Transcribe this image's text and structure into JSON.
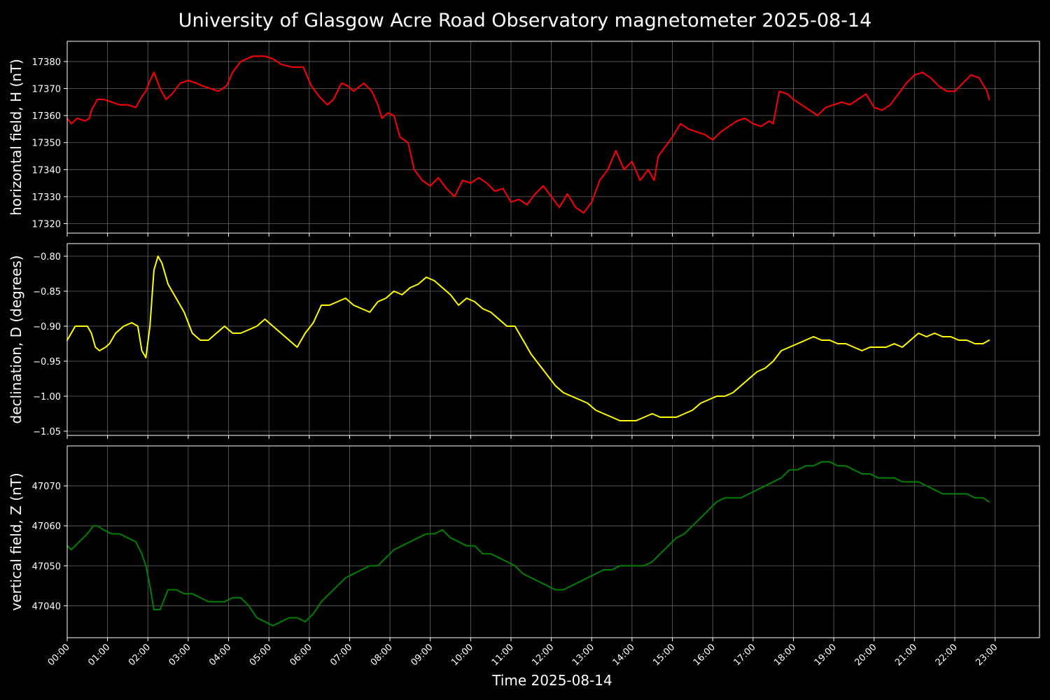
{
  "title": "University of Glasgow Acre Road Observatory magnetometer 2025-08-14",
  "xlabel": "Time 2025-08-14",
  "x_ticks": [
    "00:00",
    "01:00",
    "02:00",
    "03:00",
    "04:00",
    "05:00",
    "06:00",
    "07:00",
    "08:00",
    "09:00",
    "10:00",
    "11:00",
    "12:00",
    "13:00",
    "14:00",
    "15:00",
    "16:00",
    "17:00",
    "18:00",
    "19:00",
    "20:00",
    "21:00",
    "22:00",
    "23:00"
  ],
  "chart_data": [
    {
      "type": "line",
      "ylabel": "horizontal field, H (nT)",
      "color": "#ff0000",
      "ylim": [
        17316.5,
        17387.5
      ],
      "xlim_hours": [
        0,
        24.1
      ],
      "y_ticks": [
        17320,
        17330,
        17340,
        17350,
        17360,
        17370,
        17380
      ],
      "grid": true,
      "series": [
        {
          "x_hours": [
            0,
            0.1,
            0.25,
            0.45,
            0.55,
            0.6,
            0.75,
            0.9,
            1.1,
            1.3,
            1.5,
            1.7,
            1.85,
            1.95,
            2.05,
            2.15,
            2.3,
            2.45,
            2.6,
            2.8,
            3.0,
            3.2,
            3.35,
            3.55,
            3.75,
            3.95,
            4.1,
            4.3,
            4.6,
            4.9,
            5.1,
            5.3,
            5.55,
            5.85,
            6.05,
            6.25,
            6.45,
            6.6,
            6.8,
            6.95,
            7.1,
            7.35,
            7.55,
            7.7,
            7.8,
            7.95,
            8.1,
            8.25,
            8.45,
            8.6,
            8.8,
            9.0,
            9.2,
            9.4,
            9.6,
            9.8,
            10.0,
            10.2,
            10.4,
            10.6,
            10.8,
            11.0,
            11.2,
            11.4,
            11.6,
            11.8,
            12.0,
            12.2,
            12.4,
            12.6,
            12.8,
            13.0,
            13.2,
            13.4,
            13.6,
            13.8,
            14.0,
            14.2,
            14.4,
            14.55,
            14.65,
            14.8,
            15.0,
            15.2,
            15.4,
            15.6,
            15.8,
            16.0,
            16.2,
            16.4,
            16.6,
            16.8,
            17.0,
            17.2,
            17.4,
            17.5,
            17.65,
            17.85,
            18.0,
            18.2,
            18.4,
            18.6,
            18.8,
            19.0,
            19.2,
            19.4,
            19.6,
            19.8,
            20.0,
            20.2,
            20.4,
            20.6,
            20.8,
            21.0,
            21.2,
            21.4,
            21.6,
            21.8,
            22.0,
            22.2,
            22.4,
            22.6,
            22.8,
            22.85
          ],
          "values": [
            17359,
            17357,
            17359,
            17358,
            17359,
            17362,
            17366,
            17366,
            17365,
            17364,
            17364,
            17363,
            17367,
            17369,
            17373,
            17376,
            17370,
            17366,
            17368,
            17372,
            17373,
            17372,
            17371,
            17370,
            17369,
            17371,
            17376,
            17380,
            17382,
            17382,
            17381,
            17379,
            17378,
            17378,
            17371,
            17367,
            17364,
            17366,
            17372,
            17371,
            17369,
            17372,
            17369,
            17364,
            17359,
            17361,
            17360,
            17352,
            17350,
            17340,
            17336,
            17334,
            17337,
            17333,
            17330,
            17336,
            17335,
            17337,
            17335,
            17332,
            17333,
            17328,
            17329,
            17327,
            17331,
            17334,
            17330,
            17326,
            17331,
            17326,
            17324,
            17328,
            17336,
            17340,
            17347,
            17340,
            17343,
            17336,
            17340,
            17336,
            17345,
            17348,
            17352,
            17357,
            17355,
            17354,
            17353,
            17351,
            17354,
            17356,
            17358,
            17359,
            17357,
            17356,
            17358,
            17357,
            17369,
            17368,
            17366,
            17364,
            17362,
            17360,
            17363,
            17364,
            17365,
            17364,
            17366,
            17368,
            17363,
            17362,
            17364,
            17368,
            17372,
            17375,
            17376,
            17374,
            17371,
            17369,
            17369,
            17372,
            17375,
            17374,
            17369,
            17366
          ]
        }
      ]
    },
    {
      "type": "line",
      "ylabel": "declination, D (degrees)",
      "color": "#ffff00",
      "ylim": [
        -1.056,
        -0.782
      ],
      "xlim_hours": [
        0,
        24.1
      ],
      "y_ticks": [
        -0.8,
        -0.85,
        -0.9,
        -0.95,
        -1.0,
        -1.05
      ],
      "y_tick_labels": [
        "−0.80",
        "−0.85",
        "−0.90",
        "−0.95",
        "−1.00",
        "−1.05"
      ],
      "grid": true,
      "series": [
        {
          "x_hours": [
            0,
            0.1,
            0.2,
            0.35,
            0.5,
            0.6,
            0.7,
            0.8,
            0.95,
            1.05,
            1.2,
            1.4,
            1.6,
            1.75,
            1.85,
            1.95,
            2.05,
            2.15,
            2.25,
            2.35,
            2.5,
            2.7,
            2.9,
            3.1,
            3.3,
            3.5,
            3.7,
            3.9,
            4.1,
            4.3,
            4.5,
            4.7,
            4.9,
            5.1,
            5.3,
            5.5,
            5.7,
            5.9,
            6.1,
            6.3,
            6.5,
            6.7,
            6.9,
            7.1,
            7.3,
            7.5,
            7.7,
            7.9,
            8.1,
            8.3,
            8.5,
            8.7,
            8.9,
            9.1,
            9.3,
            9.5,
            9.7,
            9.9,
            10.1,
            10.3,
            10.5,
            10.7,
            10.9,
            11.1,
            11.3,
            11.5,
            11.7,
            11.9,
            12.1,
            12.3,
            12.5,
            12.7,
            12.9,
            13.1,
            13.3,
            13.5,
            13.7,
            13.9,
            14.1,
            14.3,
            14.5,
            14.7,
            14.9,
            15.1,
            15.3,
            15.5,
            15.7,
            15.9,
            16.1,
            16.3,
            16.5,
            16.7,
            16.9,
            17.1,
            17.3,
            17.5,
            17.7,
            17.9,
            18.1,
            18.3,
            18.5,
            18.7,
            18.9,
            19.1,
            19.3,
            19.5,
            19.7,
            19.9,
            20.1,
            20.3,
            20.5,
            20.7,
            20.9,
            21.1,
            21.3,
            21.5,
            21.7,
            21.9,
            22.1,
            22.3,
            22.5,
            22.7,
            22.85
          ],
          "values": [
            -0.92,
            -0.91,
            -0.9,
            -0.9,
            -0.9,
            -0.91,
            -0.93,
            -0.935,
            -0.93,
            -0.925,
            -0.91,
            -0.9,
            -0.895,
            -0.9,
            -0.935,
            -0.945,
            -0.9,
            -0.82,
            -0.8,
            -0.81,
            -0.84,
            -0.86,
            -0.88,
            -0.91,
            -0.92,
            -0.92,
            -0.91,
            -0.9,
            -0.91,
            -0.91,
            -0.905,
            -0.9,
            -0.89,
            -0.9,
            -0.91,
            -0.92,
            -0.93,
            -0.91,
            -0.895,
            -0.87,
            -0.87,
            -0.865,
            -0.86,
            -0.87,
            -0.875,
            -0.88,
            -0.865,
            -0.86,
            -0.85,
            -0.855,
            -0.845,
            -0.84,
            -0.83,
            -0.835,
            -0.845,
            -0.855,
            -0.87,
            -0.86,
            -0.865,
            -0.875,
            -0.88,
            -0.89,
            -0.9,
            -0.9,
            -0.92,
            -0.94,
            -0.955,
            -0.97,
            -0.985,
            -0.995,
            -1.0,
            -1.005,
            -1.01,
            -1.02,
            -1.025,
            -1.03,
            -1.035,
            -1.035,
            -1.035,
            -1.03,
            -1.025,
            -1.03,
            -1.03,
            -1.03,
            -1.025,
            -1.02,
            -1.01,
            -1.005,
            -1.0,
            -1.0,
            -0.995,
            -0.985,
            -0.975,
            -0.965,
            -0.96,
            -0.95,
            -0.935,
            -0.93,
            -0.925,
            -0.92,
            -0.915,
            -0.92,
            -0.92,
            -0.925,
            -0.925,
            -0.93,
            -0.935,
            -0.93,
            -0.93,
            -0.93,
            -0.925,
            -0.93,
            -0.92,
            -0.91,
            -0.915,
            -0.91,
            -0.915,
            -0.915,
            -0.92,
            -0.92,
            -0.925,
            -0.925,
            -0.92
          ]
        }
      ]
    },
    {
      "type": "line",
      "ylabel": "vertical field, Z (nT)",
      "color": "#008000",
      "ylim": [
        47032,
        47080
      ],
      "xlim_hours": [
        0,
        24.1
      ],
      "y_ticks": [
        47040,
        47050,
        47060,
        47070
      ],
      "grid": true,
      "series": [
        {
          "x_hours": [
            0,
            0.1,
            0.3,
            0.5,
            0.65,
            0.75,
            0.9,
            1.1,
            1.3,
            1.5,
            1.7,
            1.85,
            1.95,
            2.05,
            2.15,
            2.3,
            2.5,
            2.7,
            2.9,
            3.1,
            3.3,
            3.5,
            3.7,
            3.9,
            4.1,
            4.3,
            4.5,
            4.7,
            4.9,
            5.1,
            5.3,
            5.5,
            5.7,
            5.9,
            6.1,
            6.3,
            6.5,
            6.7,
            6.9,
            7.1,
            7.3,
            7.5,
            7.7,
            7.9,
            8.1,
            8.3,
            8.5,
            8.7,
            8.9,
            9.1,
            9.3,
            9.5,
            9.7,
            9.9,
            10.1,
            10.3,
            10.5,
            10.7,
            10.9,
            11.1,
            11.3,
            11.5,
            11.7,
            11.9,
            12.1,
            12.3,
            12.5,
            12.7,
            12.9,
            13.1,
            13.3,
            13.5,
            13.7,
            13.9,
            14.1,
            14.3,
            14.5,
            14.7,
            14.9,
            15.1,
            15.3,
            15.5,
            15.7,
            15.9,
            16.1,
            16.3,
            16.5,
            16.7,
            16.9,
            17.1,
            17.3,
            17.5,
            17.7,
            17.9,
            18.1,
            18.3,
            18.5,
            18.7,
            18.9,
            19.1,
            19.3,
            19.5,
            19.7,
            19.9,
            20.1,
            20.3,
            20.5,
            20.7,
            20.9,
            21.1,
            21.3,
            21.5,
            21.7,
            21.9,
            22.1,
            22.3,
            22.5,
            22.7,
            22.85
          ],
          "values": [
            47055,
            47054,
            47056,
            47058,
            47060,
            47060,
            47059,
            47058,
            47058,
            47057,
            47056,
            47053,
            47050,
            47045,
            47039,
            47039,
            47044,
            47044,
            47043,
            47043,
            47042,
            47041,
            47041,
            47041,
            47042,
            47042,
            47040,
            47037,
            47036,
            47035,
            47036,
            47037,
            47037,
            47036,
            47038,
            47041,
            47043,
            47045,
            47047,
            47048,
            47049,
            47050,
            47050,
            47052,
            47054,
            47055,
            47056,
            47057,
            47058,
            47058,
            47059,
            47057,
            47056,
            47055,
            47055,
            47053,
            47053,
            47052,
            47051,
            47050,
            47048,
            47047,
            47046,
            47045,
            47044,
            47044,
            47045,
            47046,
            47047,
            47048,
            47049,
            47049,
            47050,
            47050,
            47050,
            47050,
            47051,
            47053,
            47055,
            47057,
            47058,
            47060,
            47062,
            47064,
            47066,
            47067,
            47067,
            47067,
            47068,
            47069,
            47070,
            47071,
            47072,
            47074,
            47074,
            47075,
            47075,
            47076,
            47076,
            47075,
            47075,
            47074,
            47073,
            47073,
            47072,
            47072,
            47072,
            47071,
            47071,
            47071,
            47070,
            47069,
            47068,
            47068,
            47068,
            47068,
            47067,
            47067,
            47066
          ]
        }
      ]
    }
  ]
}
